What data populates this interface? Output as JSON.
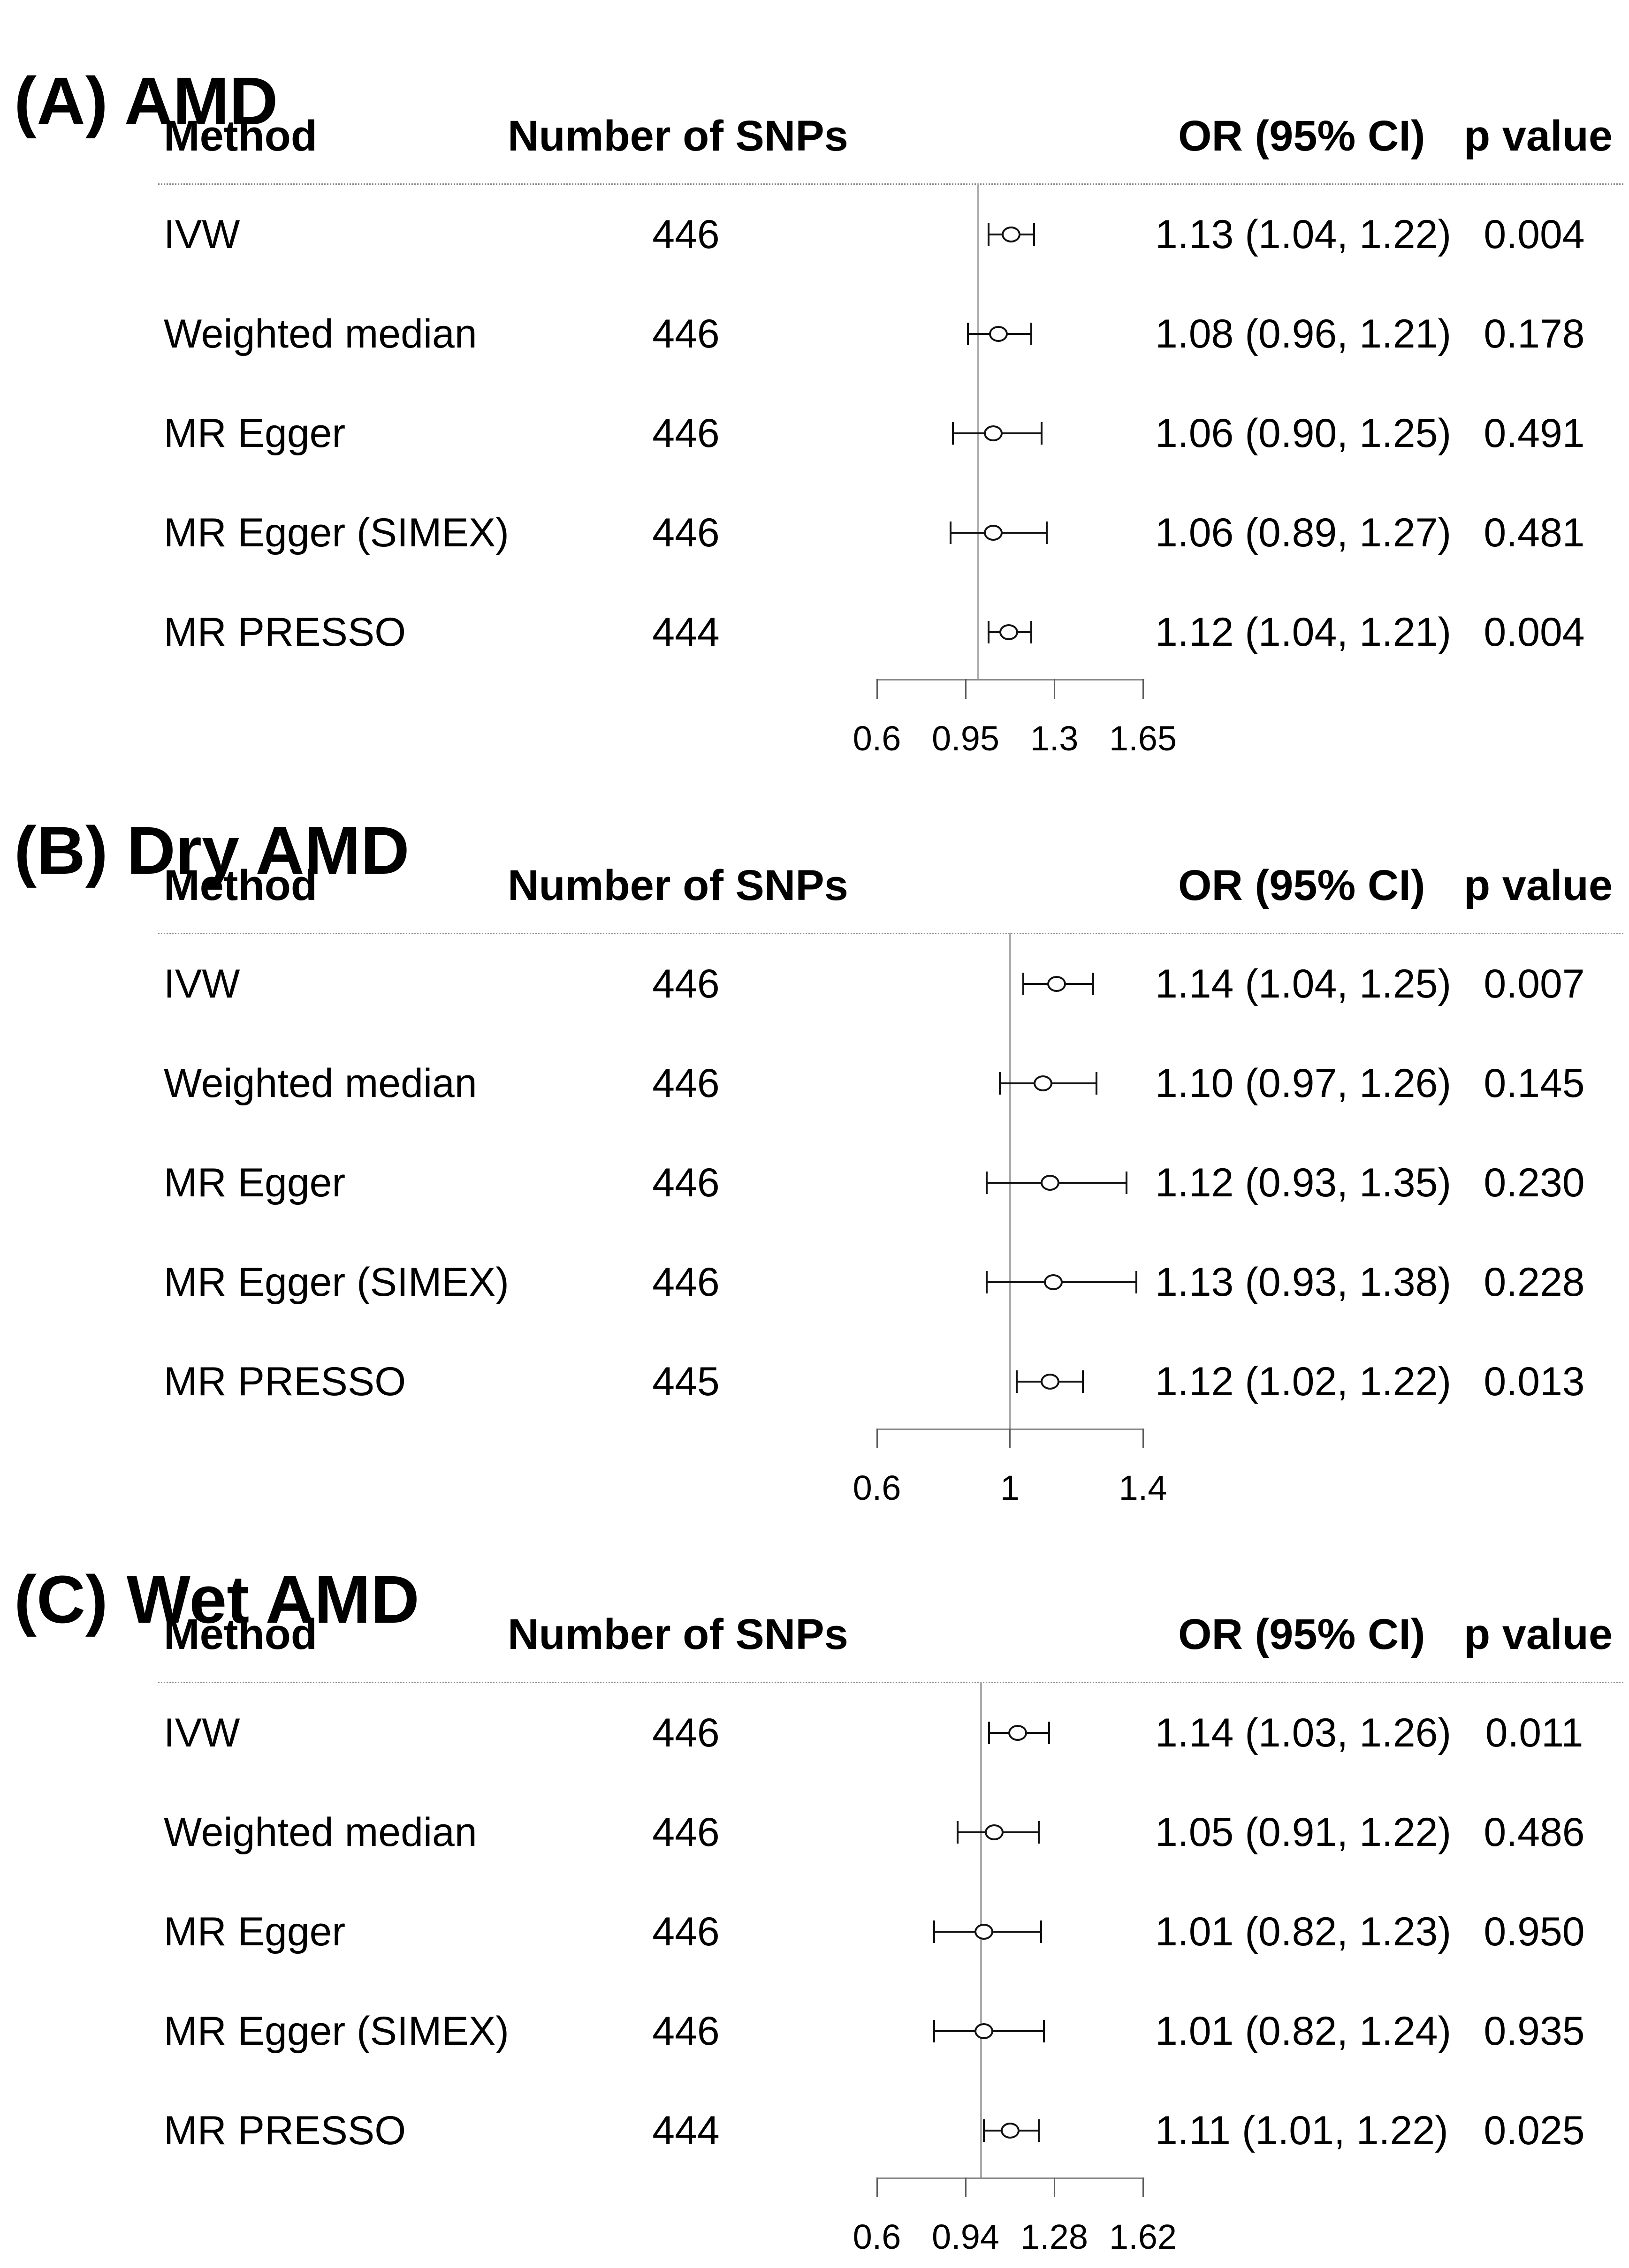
{
  "panels": [
    {
      "title": "(A) AMD",
      "columns": {
        "method": "Method",
        "snps": "Number of SNPs",
        "or": "OR (95% CI)",
        "p": "p value"
      },
      "rows": [
        {
          "method": "IVW",
          "snps": "446",
          "or_ci": "1.13 (1.04, 1.22)",
          "p": "0.004"
        },
        {
          "method": "Weighted median",
          "snps": "446",
          "or_ci": "1.08 (0.96, 1.21)",
          "p": "0.178"
        },
        {
          "method": "MR Egger",
          "snps": "446",
          "or_ci": "1.06 (0.90, 1.25)",
          "p": "0.491"
        },
        {
          "method": "MR Egger (SIMEX)",
          "snps": "446",
          "or_ci": "1.06 (0.89, 1.27)",
          "p": "0.481"
        },
        {
          "method": "MR PRESSO",
          "snps": "444",
          "or_ci": "1.12 (1.04, 1.21)",
          "p": "0.004"
        }
      ]
    },
    {
      "title": "(B) Dry AMD",
      "columns": {
        "method": "Method",
        "snps": "Number of SNPs",
        "or": "OR (95% CI)",
        "p": "p value"
      },
      "rows": [
        {
          "method": "IVW",
          "snps": "446",
          "or_ci": "1.14 (1.04, 1.25)",
          "p": "0.007"
        },
        {
          "method": "Weighted median",
          "snps": "446",
          "or_ci": "1.10 (0.97, 1.26)",
          "p": "0.145"
        },
        {
          "method": "MR Egger",
          "snps": "446",
          "or_ci": "1.12 (0.93, 1.35)",
          "p": "0.230"
        },
        {
          "method": "MR Egger (SIMEX)",
          "snps": "446",
          "or_ci": "1.13 (0.93, 1.38)",
          "p": "0.228"
        },
        {
          "method": "MR PRESSO",
          "snps": "445",
          "or_ci": "1.12 (1.02, 1.22)",
          "p": "0.013"
        }
      ]
    },
    {
      "title": "(C) Wet AMD",
      "columns": {
        "method": "Method",
        "snps": "Number of SNPs",
        "or": "OR (95% CI)",
        "p": "p value"
      },
      "rows": [
        {
          "method": "IVW",
          "snps": "446",
          "or_ci": "1.14 (1.03, 1.26)",
          "p": "0.011"
        },
        {
          "method": "Weighted median",
          "snps": "446",
          "or_ci": "1.05 (0.91, 1.22)",
          "p": "0.486"
        },
        {
          "method": "MR Egger",
          "snps": "446",
          "or_ci": "1.01 (0.82, 1.23)",
          "p": "0.950"
        },
        {
          "method": "MR Egger (SIMEX)",
          "snps": "446",
          "or_ci": "1.01 (0.82, 1.24)",
          "p": "0.935"
        },
        {
          "method": "MR PRESSO",
          "snps": "444",
          "or_ci": "1.11 (1.01, 1.22)",
          "p": "0.025"
        }
      ]
    }
  ],
  "chart_data": [
    {
      "type": "forest",
      "title": "(A) AMD",
      "xlim": [
        0.6,
        1.65
      ],
      "ref_line": 1.0,
      "x_ticks": [
        0.6,
        0.95,
        1.3,
        1.65
      ],
      "tick_labels": [
        "0.6",
        "0.95",
        "1.3",
        "1.65"
      ],
      "legend_position": "none",
      "grid": false,
      "series": [
        {
          "method": "IVW",
          "n_snps": 446,
          "or": 1.13,
          "ci_low": 1.04,
          "ci_high": 1.22,
          "p": 0.004
        },
        {
          "method": "Weighted median",
          "n_snps": 446,
          "or": 1.08,
          "ci_low": 0.96,
          "ci_high": 1.21,
          "p": 0.178
        },
        {
          "method": "MR Egger",
          "n_snps": 446,
          "or": 1.06,
          "ci_low": 0.9,
          "ci_high": 1.25,
          "p": 0.491
        },
        {
          "method": "MR Egger (SIMEX)",
          "n_snps": 446,
          "or": 1.06,
          "ci_low": 0.89,
          "ci_high": 1.27,
          "p": 0.481
        },
        {
          "method": "MR PRESSO",
          "n_snps": 444,
          "or": 1.12,
          "ci_low": 1.04,
          "ci_high": 1.21,
          "p": 0.004
        }
      ]
    },
    {
      "type": "forest",
      "title": "(B) Dry AMD",
      "xlim": [
        0.6,
        1.4
      ],
      "ref_line": 1.0,
      "x_ticks": [
        0.6,
        1.0,
        1.4
      ],
      "tick_labels": [
        "0.6",
        "1",
        "1.4"
      ],
      "legend_position": "none",
      "grid": false,
      "series": [
        {
          "method": "IVW",
          "n_snps": 446,
          "or": 1.14,
          "ci_low": 1.04,
          "ci_high": 1.25,
          "p": 0.007
        },
        {
          "method": "Weighted median",
          "n_snps": 446,
          "or": 1.1,
          "ci_low": 0.97,
          "ci_high": 1.26,
          "p": 0.145
        },
        {
          "method": "MR Egger",
          "n_snps": 446,
          "or": 1.12,
          "ci_low": 0.93,
          "ci_high": 1.35,
          "p": 0.23
        },
        {
          "method": "MR Egger (SIMEX)",
          "n_snps": 446,
          "or": 1.13,
          "ci_low": 0.93,
          "ci_high": 1.38,
          "p": 0.228
        },
        {
          "method": "MR PRESSO",
          "n_snps": 445,
          "or": 1.12,
          "ci_low": 1.02,
          "ci_high": 1.22,
          "p": 0.013
        }
      ]
    },
    {
      "type": "forest",
      "title": "(C) Wet AMD",
      "xlim": [
        0.6,
        1.62
      ],
      "ref_line": 1.0,
      "x_ticks": [
        0.6,
        0.94,
        1.28,
        1.62
      ],
      "tick_labels": [
        "0.6",
        "0.94",
        "1.28",
        "1.62"
      ],
      "legend_position": "none",
      "grid": false,
      "series": [
        {
          "method": "IVW",
          "n_snps": 446,
          "or": 1.14,
          "ci_low": 1.03,
          "ci_high": 1.26,
          "p": 0.011
        },
        {
          "method": "Weighted median",
          "n_snps": 446,
          "or": 1.05,
          "ci_low": 0.91,
          "ci_high": 1.22,
          "p": 0.486
        },
        {
          "method": "MR Egger",
          "n_snps": 446,
          "or": 1.01,
          "ci_low": 0.82,
          "ci_high": 1.23,
          "p": 0.95
        },
        {
          "method": "MR Egger (SIMEX)",
          "n_snps": 446,
          "or": 1.01,
          "ci_low": 0.82,
          "ci_high": 1.24,
          "p": 0.935
        },
        {
          "method": "MR PRESSO",
          "n_snps": 444,
          "or": 1.11,
          "ci_low": 1.01,
          "ci_high": 1.22,
          "p": 0.025
        }
      ]
    }
  ],
  "colors": {
    "text": "#000000",
    "marker": "#111111",
    "ref_line": "#ababab",
    "bracket": "#8c8c8c",
    "dotted_rule": "#8a8a8a",
    "background": "#ffffff"
  }
}
